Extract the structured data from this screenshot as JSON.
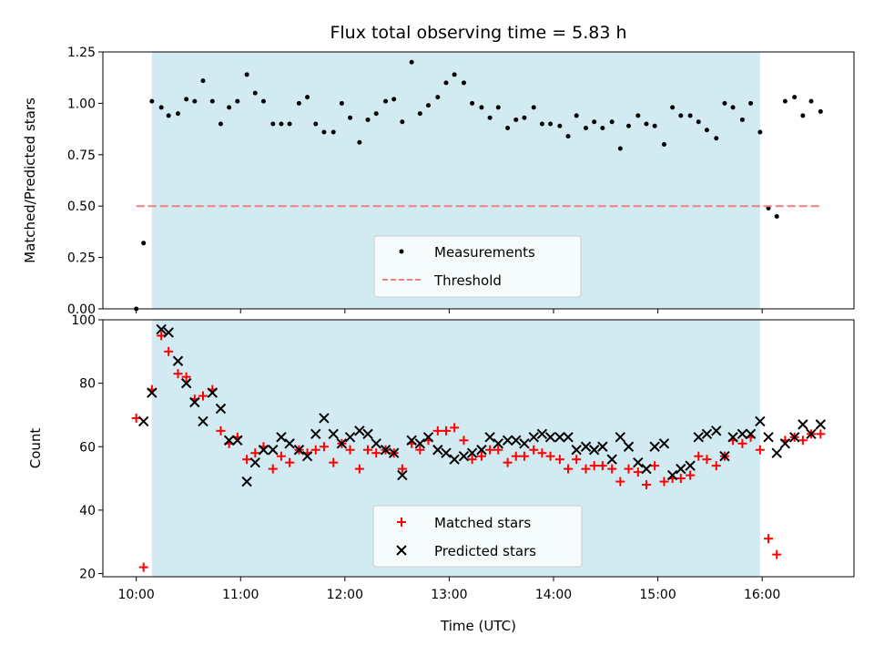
{
  "chart_data": [
    {
      "type": "scatter",
      "title": "Flux total observing time = 5.83 h",
      "ylabel": "Matched/Predicted stars",
      "xlabel": "",
      "ylim": [
        0,
        1.25
      ],
      "yticks": [
        "0.00",
        "0.25",
        "0.50",
        "0.75",
        "1.00",
        "1.25"
      ],
      "x_ticks_hours": [
        10,
        11,
        12,
        13,
        14,
        15,
        16
      ],
      "shaded_span_hours": [
        10.15,
        15.98
      ],
      "shade_color": "#add8e6",
      "legend_position": "lower center",
      "series": [
        {
          "name": "Measurements",
          "marker": "dot",
          "color": "#000000",
          "x": [
            10.0,
            10.07,
            10.15,
            10.24,
            10.31,
            10.4,
            10.48,
            10.56,
            10.64,
            10.73,
            10.81,
            10.89,
            10.97,
            11.06,
            11.14,
            11.22,
            11.31,
            11.39,
            11.47,
            11.56,
            11.64,
            11.72,
            11.8,
            11.89,
            11.97,
            12.05,
            12.14,
            12.22,
            12.3,
            12.39,
            12.47,
            12.55,
            12.64,
            12.72,
            12.8,
            12.89,
            12.97,
            13.05,
            13.14,
            13.22,
            13.31,
            13.39,
            13.47,
            13.56,
            13.64,
            13.72,
            13.81,
            13.89,
            13.97,
            14.06,
            14.14,
            14.22,
            14.31,
            14.39,
            14.47,
            14.56,
            14.64,
            14.72,
            14.81,
            14.89,
            14.97,
            15.06,
            15.14,
            15.22,
            15.31,
            15.39,
            15.47,
            15.56,
            15.64,
            15.72,
            15.81,
            15.89,
            15.98,
            16.06,
            16.14,
            16.22,
            16.31,
            16.39,
            16.47,
            16.56
          ],
          "y": [
            0.0,
            0.32,
            1.01,
            0.98,
            0.94,
            0.95,
            1.02,
            1.01,
            1.11,
            1.01,
            0.9,
            0.98,
            1.01,
            1.14,
            1.05,
            1.01,
            0.9,
            0.9,
            0.9,
            1.0,
            1.03,
            0.9,
            0.86,
            0.86,
            1.0,
            0.93,
            0.81,
            0.92,
            0.95,
            1.01,
            1.02,
            0.91,
            1.2,
            0.95,
            0.99,
            1.03,
            1.1,
            1.14,
            1.1,
            1.0,
            0.98,
            0.93,
            0.98,
            0.88,
            0.92,
            0.93,
            0.98,
            0.9,
            0.9,
            0.89,
            0.84,
            0.94,
            0.88,
            0.91,
            0.88,
            0.91,
            0.78,
            0.89,
            0.94,
            0.9,
            0.89,
            0.8,
            0.98,
            0.94,
            0.94,
            0.91,
            0.87,
            0.83,
            1.0,
            0.98,
            0.92,
            1.0,
            0.86,
            0.49,
            0.45,
            1.01,
            1.03,
            0.94,
            1.01,
            0.96
          ]
        },
        {
          "name": "Threshold",
          "type": "line",
          "style": "dashed",
          "color": "#f08080",
          "x": [
            10.0,
            16.56
          ],
          "y": [
            0.5,
            0.5
          ]
        }
      ]
    },
    {
      "type": "scatter",
      "title": "",
      "xlabel": "Time (UTC)",
      "ylabel": "Count",
      "ylim": [
        19,
        100
      ],
      "yticks": [
        20,
        40,
        60,
        80,
        100
      ],
      "xlim_hours": [
        9.68,
        16.88
      ],
      "x_tick_labels": [
        "10:00",
        "11:00",
        "12:00",
        "13:00",
        "14:00",
        "15:00",
        "16:00"
      ],
      "x_ticks_hours": [
        10,
        11,
        12,
        13,
        14,
        15,
        16
      ],
      "shaded_span_hours": [
        10.15,
        15.98
      ],
      "shade_color": "#add8e6",
      "legend_position": "lower center",
      "series": [
        {
          "name": "Matched stars",
          "marker": "plus",
          "color": "#ff0000",
          "x": [
            10.0,
            10.07,
            10.15,
            10.24,
            10.31,
            10.4,
            10.48,
            10.56,
            10.64,
            10.73,
            10.81,
            10.89,
            10.97,
            11.06,
            11.14,
            11.22,
            11.31,
            11.39,
            11.47,
            11.56,
            11.64,
            11.72,
            11.8,
            11.89,
            11.97,
            12.05,
            12.14,
            12.22,
            12.3,
            12.39,
            12.47,
            12.55,
            12.64,
            12.72,
            12.8,
            12.89,
            12.97,
            13.05,
            13.14,
            13.22,
            13.31,
            13.39,
            13.47,
            13.56,
            13.64,
            13.72,
            13.81,
            13.89,
            13.97,
            14.06,
            14.14,
            14.22,
            14.31,
            14.39,
            14.47,
            14.56,
            14.64,
            14.72,
            14.81,
            14.89,
            14.97,
            15.06,
            15.14,
            15.22,
            15.31,
            15.39,
            15.47,
            15.56,
            15.64,
            15.72,
            15.81,
            15.89,
            15.98,
            16.06,
            16.14,
            16.22,
            16.31,
            16.39,
            16.47,
            16.56
          ],
          "y": [
            69,
            22,
            78,
            95,
            90,
            83,
            82,
            75,
            76,
            78,
            65,
            61,
            63,
            56,
            58,
            60,
            53,
            57,
            55,
            59,
            58,
            59,
            60,
            55,
            61,
            59,
            53,
            59,
            58,
            59,
            58,
            53,
            61,
            59,
            62,
            65,
            65,
            66,
            62,
            56,
            57,
            59,
            59,
            55,
            57,
            57,
            59,
            58,
            57,
            56,
            53,
            56,
            53,
            54,
            54,
            53,
            49,
            53,
            52,
            48,
            54,
            49,
            50,
            50,
            51,
            57,
            56,
            54,
            57,
            62,
            61,
            63,
            59,
            31,
            26,
            62,
            63,
            62,
            64,
            64
          ]
        },
        {
          "name": "Predicted stars",
          "marker": "x",
          "color": "#000000",
          "x": [
            10.0,
            10.07,
            10.15,
            10.24,
            10.31,
            10.4,
            10.48,
            10.56,
            10.64,
            10.73,
            10.81,
            10.89,
            10.97,
            11.06,
            11.14,
            11.22,
            11.31,
            11.39,
            11.47,
            11.56,
            11.64,
            11.72,
            11.8,
            11.89,
            11.97,
            12.05,
            12.14,
            12.22,
            12.3,
            12.39,
            12.47,
            12.55,
            12.64,
            12.72,
            12.8,
            12.89,
            12.97,
            13.05,
            13.14,
            13.22,
            13.31,
            13.39,
            13.47,
            13.56,
            13.64,
            13.72,
            13.81,
            13.89,
            13.97,
            14.06,
            14.14,
            14.22,
            14.31,
            14.39,
            14.47,
            14.56,
            14.64,
            14.72,
            14.81,
            14.89,
            14.97,
            15.06,
            15.14,
            15.22,
            15.31,
            15.39,
            15.47,
            15.56,
            15.64,
            15.72,
            15.81,
            15.89,
            15.98,
            16.06,
            16.14,
            16.22,
            16.31,
            16.39,
            16.47,
            16.56
          ],
          "y": [
            null,
            68,
            77,
            97,
            96,
            87,
            80,
            74,
            68,
            77,
            72,
            62,
            62,
            49,
            55,
            59,
            59,
            63,
            61,
            59,
            57,
            64,
            69,
            64,
            61,
            63,
            65,
            64,
            61,
            59,
            58,
            51,
            62,
            61,
            63,
            59,
            58,
            56,
            57,
            58,
            59,
            63,
            61,
            62,
            62,
            61,
            63,
            64,
            63,
            63,
            63,
            59,
            60,
            59,
            60,
            56,
            63,
            60,
            55,
            53,
            60,
            61,
            51,
            53,
            54,
            63,
            64,
            65,
            57,
            63,
            64,
            64,
            68,
            63,
            58,
            61,
            63,
            67,
            64,
            67
          ]
        }
      ]
    }
  ]
}
